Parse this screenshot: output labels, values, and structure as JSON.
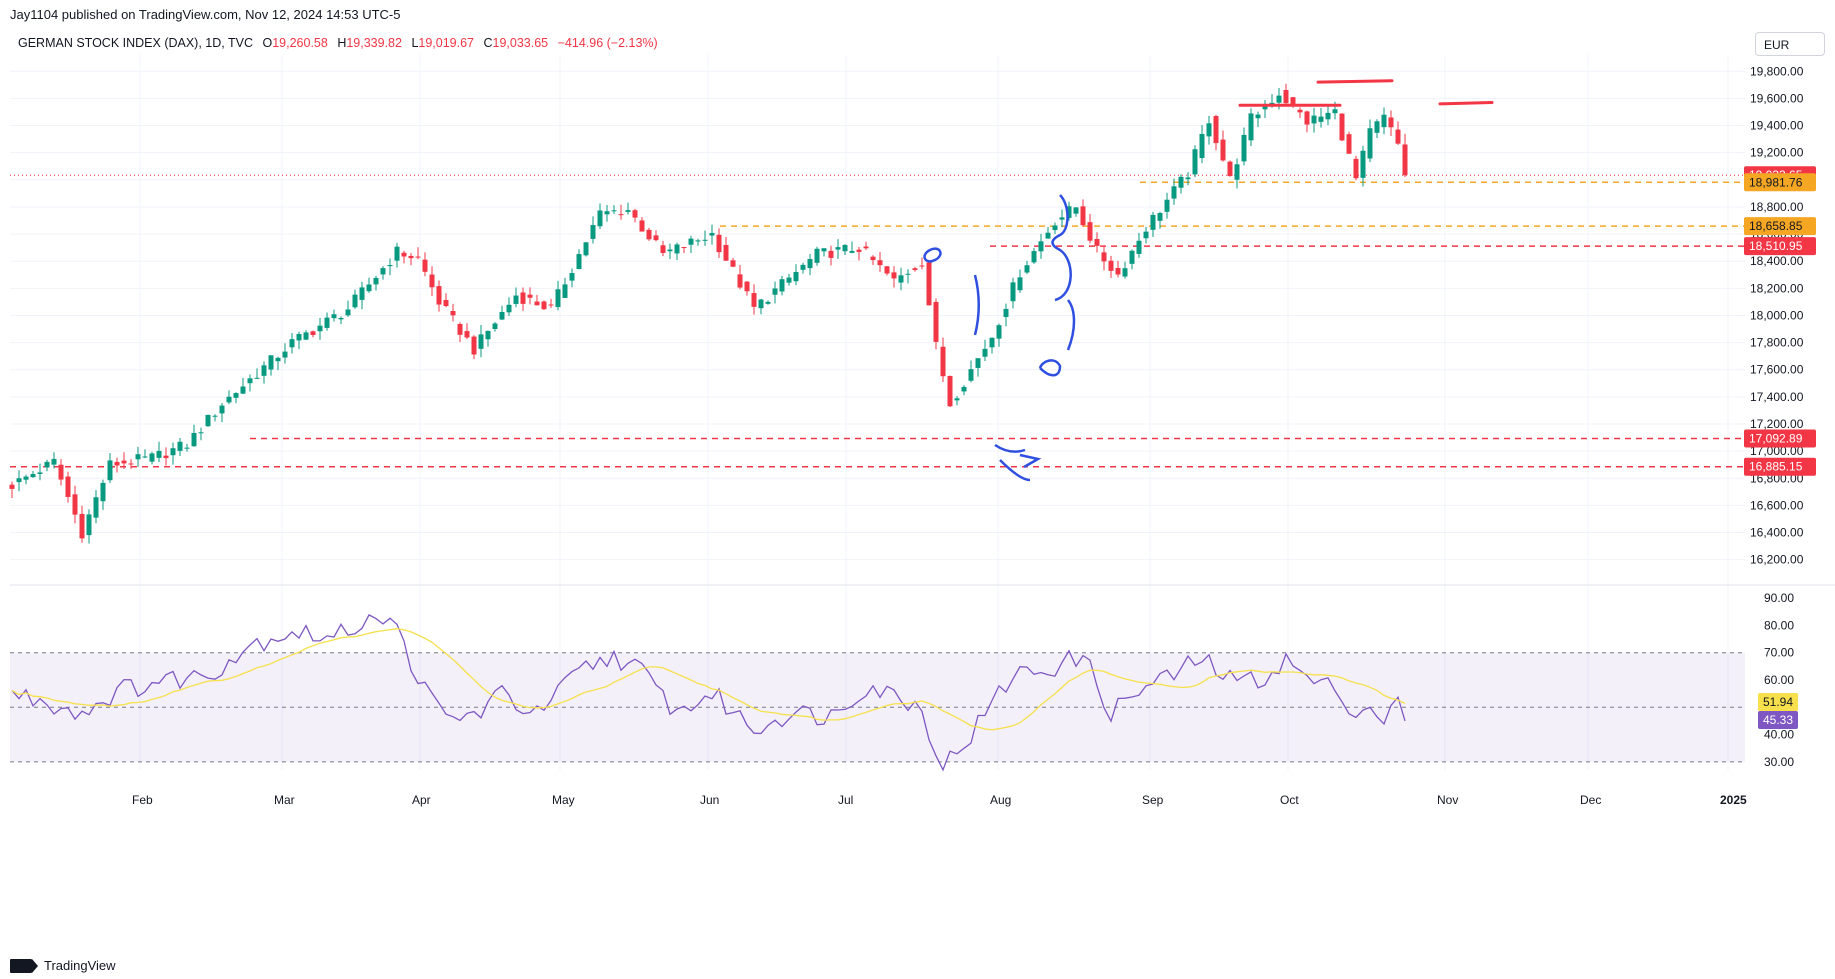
{
  "publisher": "Jay1104 published on TradingView.com, Nov 12, 2024 14:53 UTC-5",
  "legend": {
    "symbol": "GERMAN STOCK INDEX (DAX), 1D, TVC",
    "open_label": "O",
    "open": "19,260.58",
    "high_label": "H",
    "high": "19,339.82",
    "low_label": "L",
    "low": "19,019.67",
    "close_label": "C",
    "close": "19,033.65",
    "change": "−414.96 (−2.13%)"
  },
  "currency": "EUR",
  "footer": {
    "brand": "TradingView",
    "logo": "tradingview-logo-icon"
  },
  "colors": {
    "up": "#089981",
    "down": "#f23645",
    "rsi": "#7e57c2",
    "rsi_ma": "#f7e04b",
    "support": "#f23645",
    "level": "#f5a623",
    "drawing_blue": "#2f4fe0"
  },
  "chart_data": {
    "type": "candlestick",
    "title": "GERMAN STOCK INDEX (DAX), 1D, TVC",
    "currency": "EUR",
    "price_axis": {
      "ticks": [
        "16,200.00",
        "16,400.00",
        "16,600.00",
        "16,800.00",
        "17,000.00",
        "17,200.00",
        "17,400.00",
        "17,600.00",
        "17,800.00",
        "18,000.00",
        "18,200.00",
        "18,400.00",
        "18,600.00",
        "18,800.00",
        "19,000.00",
        "19,200.00",
        "19,400.00",
        "19,600.00",
        "19,800.00"
      ],
      "range": [
        16050,
        19920
      ]
    },
    "time_axis": {
      "ticks": [
        "Feb",
        "Mar",
        "Apr",
        "May",
        "Jun",
        "Jul",
        "Aug",
        "Sep",
        "Oct",
        "Nov",
        "Dec",
        "2025"
      ]
    },
    "anchors": [
      [
        0,
        16750
      ],
      [
        6,
        16920
      ],
      [
        10,
        16400
      ],
      [
        14,
        16900
      ],
      [
        20,
        16950
      ],
      [
        25,
        17050
      ],
      [
        30,
        17350
      ],
      [
        40,
        17800
      ],
      [
        48,
        18050
      ],
      [
        55,
        18470
      ],
      [
        58,
        18420
      ],
      [
        61,
        18100
      ],
      [
        66,
        17750
      ],
      [
        72,
        18150
      ],
      [
        77,
        18050
      ],
      [
        84,
        18750
      ],
      [
        88,
        18780
      ],
      [
        93,
        18450
      ],
      [
        100,
        18600
      ],
      [
        106,
        18050
      ],
      [
        115,
        18450
      ],
      [
        121,
        18500
      ],
      [
        126,
        18250
      ],
      [
        130,
        18400
      ],
      [
        132,
        17770
      ],
      [
        134,
        17350
      ],
      [
        140,
        17850
      ],
      [
        144,
        18320
      ],
      [
        149,
        18700
      ],
      [
        152,
        18800
      ],
      [
        155,
        18470
      ],
      [
        158,
        18300
      ],
      [
        162,
        18650
      ],
      [
        168,
        19050
      ],
      [
        171,
        19450
      ],
      [
        174,
        19000
      ],
      [
        177,
        19450
      ],
      [
        181,
        19640
      ],
      [
        185,
        19430
      ],
      [
        189,
        19500
      ],
      [
        192,
        19000
      ],
      [
        194,
        19350
      ],
      [
        196,
        19460
      ],
      [
        198,
        19260
      ],
      [
        199,
        19034
      ]
    ],
    "last_bar": {
      "open": 19260.58,
      "high": 19339.82,
      "low": 19019.67,
      "close": 19033.65
    },
    "price_labels": [
      {
        "value": 19033.65,
        "text": "19,033.65",
        "kind": "last"
      },
      {
        "value": 18981.76,
        "text": "18,981.76",
        "kind": "level"
      },
      {
        "value": 18658.85,
        "text": "18,658.85",
        "kind": "level"
      },
      {
        "value": 18510.95,
        "text": "18,510.95",
        "kind": "support"
      },
      {
        "value": 17092.89,
        "text": "17,092.89",
        "kind": "support"
      },
      {
        "value": 16885.15,
        "text": "16,885.15",
        "kind": "support"
      }
    ],
    "rsi": {
      "axis_ticks": [
        "30.00",
        "40.00",
        "50.00",
        "60.00",
        "70.00",
        "80.00",
        "90.00"
      ],
      "range": [
        27,
        93
      ],
      "band": [
        30,
        70
      ],
      "midline": 50,
      "last_rsi": {
        "value": 45.33,
        "text": "45.33"
      },
      "last_ma": {
        "value": 51.94,
        "text": "51.94"
      },
      "anchors": [
        [
          0,
          55
        ],
        [
          5,
          52
        ],
        [
          10,
          48
        ],
        [
          15,
          56
        ],
        [
          22,
          60
        ],
        [
          28,
          62
        ],
        [
          34,
          73
        ],
        [
          40,
          78
        ],
        [
          46,
          75
        ],
        [
          52,
          85
        ],
        [
          55,
          78
        ],
        [
          59,
          56
        ],
        [
          62,
          46
        ],
        [
          66,
          47
        ],
        [
          70,
          55
        ],
        [
          75,
          47
        ],
        [
          81,
          63
        ],
        [
          86,
          69
        ],
        [
          90,
          63
        ],
        [
          95,
          48
        ],
        [
          100,
          55
        ],
        [
          106,
          42
        ],
        [
          111,
          48
        ],
        [
          117,
          47
        ],
        [
          122,
          58
        ],
        [
          127,
          54
        ],
        [
          130,
          49
        ],
        [
          133,
          28
        ],
        [
          137,
          40
        ],
        [
          143,
          62
        ],
        [
          148,
          64
        ],
        [
          153,
          69
        ],
        [
          157,
          48
        ],
        [
          161,
          56
        ],
        [
          166,
          62
        ],
        [
          170,
          68
        ],
        [
          174,
          60
        ],
        [
          178,
          60
        ],
        [
          182,
          67
        ],
        [
          186,
          59
        ],
        [
          190,
          56
        ],
        [
          192,
          46
        ],
        [
          194,
          52
        ],
        [
          196,
          44
        ],
        [
          198,
          52
        ],
        [
          199,
          45
        ]
      ]
    }
  }
}
